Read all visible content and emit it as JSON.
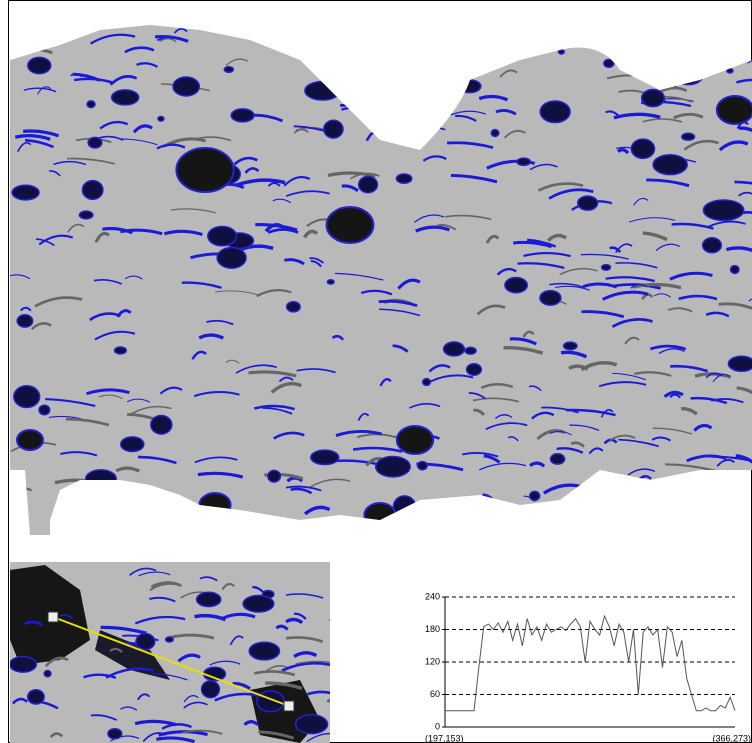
{
  "chart_data": {
    "type": "line",
    "categories": [
      "(197,153)",
      null,
      null,
      null,
      null,
      null,
      null,
      null,
      null,
      null,
      null,
      null,
      null,
      null,
      null,
      null,
      null,
      null,
      null,
      null,
      null,
      null,
      null,
      null,
      null,
      null,
      null,
      null,
      null,
      null,
      null,
      null,
      null,
      null,
      null,
      null,
      null,
      null,
      null,
      null,
      null,
      null,
      null,
      null,
      null,
      null,
      null,
      null,
      null,
      null,
      null,
      null,
      null,
      null,
      null,
      null,
      null,
      null,
      null,
      null,
      "(366,273)"
    ],
    "values": [
      30,
      30,
      30,
      30,
      30,
      30,
      30,
      110,
      185,
      190,
      180,
      192,
      175,
      195,
      160,
      190,
      150,
      200,
      170,
      185,
      160,
      190,
      175,
      180,
      185,
      178,
      190,
      200,
      185,
      120,
      195,
      180,
      170,
      205,
      185,
      150,
      190,
      175,
      120,
      180,
      60,
      175,
      185,
      170,
      180,
      110,
      185,
      175,
      130,
      160,
      90,
      60,
      30,
      30,
      35,
      30,
      30,
      40,
      35,
      55,
      30
    ],
    "color": "#555555",
    "ylim": [
      0,
      240
    ],
    "yticks": [
      0,
      60,
      120,
      180,
      240
    ],
    "grid": true
  }
}
